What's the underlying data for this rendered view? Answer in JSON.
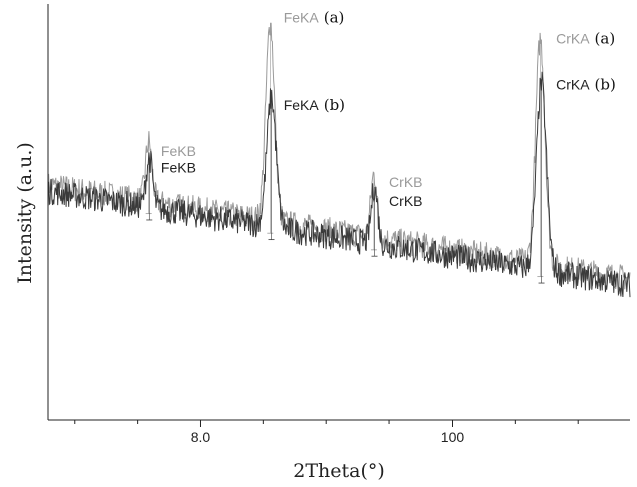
{
  "chart_data": {
    "type": "line",
    "title": "",
    "xlabel": "2Theta(°)",
    "ylabel": "Intensity (a.u.)",
    "xlim": [
      0,
      100
    ],
    "ylim": [
      0,
      100
    ],
    "x_tick_labels": [
      {
        "x": 26.2,
        "label": "8.0"
      },
      {
        "x": 69.5,
        "label": "100"
      }
    ],
    "x_minor_ticks": [
      4.6,
      15.4,
      37.0,
      47.8,
      58.6,
      80.3,
      91.1
    ],
    "grid": false,
    "legend": "none",
    "noise_amplitude": 3.2,
    "series": [
      {
        "id": "a",
        "color": "#9a9a9a",
        "baseline": [
          [
            0,
            56.5
          ],
          [
            100,
            34.0
          ]
        ],
        "peaks": [
          {
            "label": "FeKA",
            "tag": "(a)",
            "x": 38.2,
            "height": 95.5,
            "width": 0.75
          },
          {
            "label": "FeKB",
            "tag": "",
            "x": 17.3,
            "height": 67.0,
            "width": 0.55
          },
          {
            "label": "CrKB",
            "tag": "",
            "x": 56.0,
            "height": 59.0,
            "width": 0.55
          },
          {
            "label": "CrKA",
            "tag": "(a)",
            "x": 84.6,
            "height": 91.5,
            "width": 0.8
          }
        ]
      },
      {
        "id": "b",
        "color": "#3a3a3a",
        "baseline": [
          [
            0,
            55.0
          ],
          [
            100,
            32.5
          ]
        ],
        "peaks": [
          {
            "label": "FeKA",
            "tag": "(b)",
            "x": 38.4,
            "height": 77.5,
            "width": 0.8
          },
          {
            "label": "FeKB",
            "tag": "",
            "x": 17.4,
            "height": 63.0,
            "width": 0.55
          },
          {
            "label": "CrKB",
            "tag": "",
            "x": 56.1,
            "height": 56.0,
            "width": 0.55
          },
          {
            "label": "CrKA",
            "tag": "(b)",
            "x": 84.8,
            "height": 81.0,
            "width": 0.85
          }
        ]
      }
    ],
    "annotations": [
      {
        "text": "FeKA",
        "tag": "(a)",
        "color": "#9a9a9a",
        "x": 40.5,
        "y": 95.5
      },
      {
        "text": "FeKA",
        "tag": "(b)",
        "color": "#222222",
        "x": 40.5,
        "y": 74.5
      },
      {
        "text": "FeKB",
        "tag": "",
        "color": "#9a9a9a",
        "x": 19.4,
        "y": 63.5
      },
      {
        "text": "FeKB",
        "tag": "",
        "color": "#222222",
        "x": 19.4,
        "y": 59.5
      },
      {
        "text": "CrKB",
        "tag": "",
        "color": "#9a9a9a",
        "x": 58.6,
        "y": 56.0
      },
      {
        "text": "CrKB",
        "tag": "",
        "color": "#222222",
        "x": 58.6,
        "y": 51.5
      },
      {
        "text": "CrKA",
        "tag": "(a)",
        "color": "#9a9a9a",
        "x": 87.3,
        "y": 90.5
      },
      {
        "text": "CrKA",
        "tag": "(b)",
        "color": "#222222",
        "x": 87.3,
        "y": 79.5
      }
    ]
  }
}
